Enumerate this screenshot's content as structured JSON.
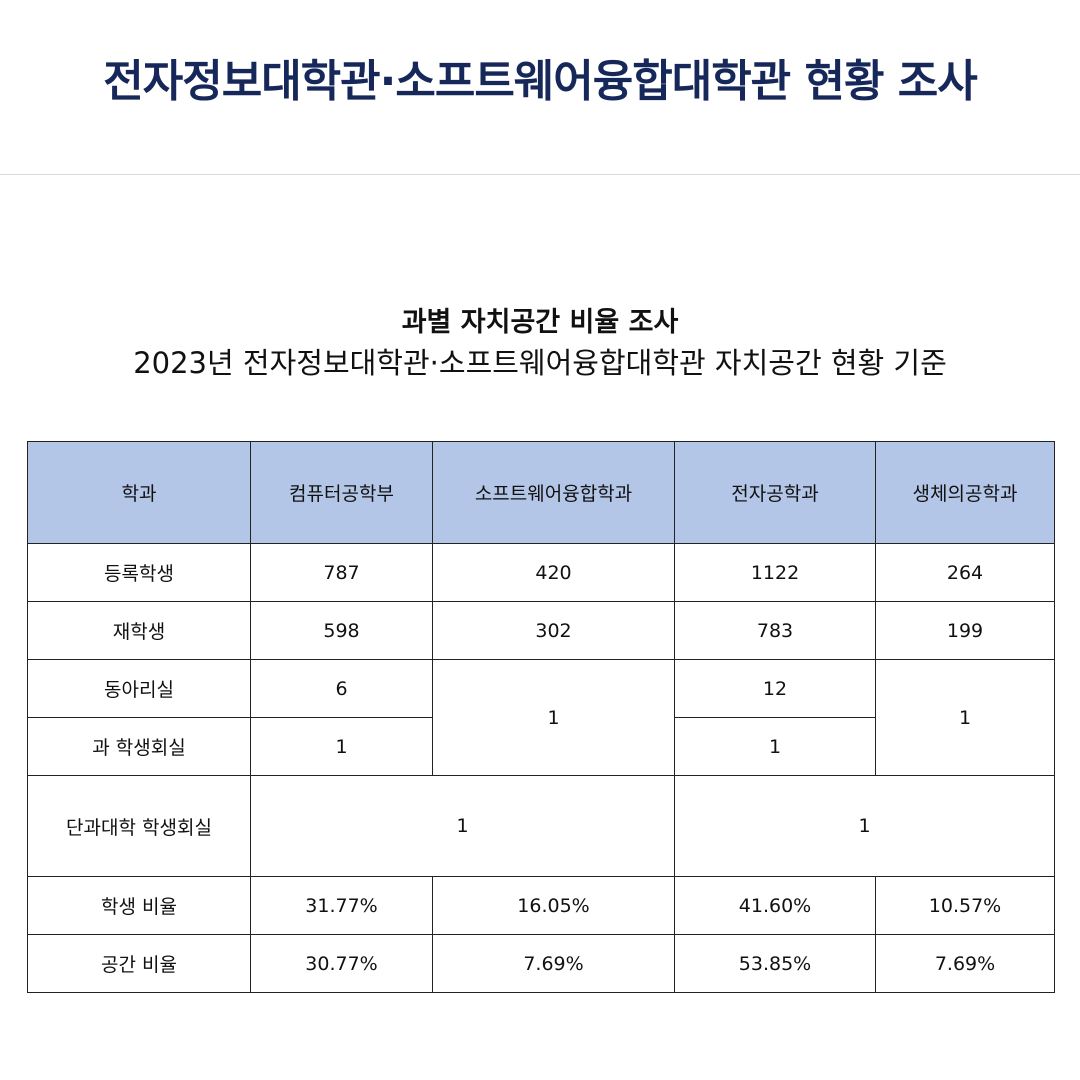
{
  "header": {
    "title": "전자정보대학관·소프트웨어융합대학관 현황 조사"
  },
  "section": {
    "title": "과별 자치공간 비율 조사",
    "caption": "2023년 전자정보대학관·소프트웨어융합대학관 자치공간 현황 기준"
  },
  "table": {
    "headers": [
      "학과",
      "컴퓨터공학부",
      "소프트웨어융합학과",
      "전자공학과",
      "생체의공학과"
    ],
    "rows": {
      "enrolled": {
        "label": "등록학생",
        "values": [
          "787",
          "420",
          "1122",
          "264"
        ]
      },
      "current": {
        "label": "재학생",
        "values": [
          "598",
          "302",
          "783",
          "199"
        ]
      },
      "club_rooms": {
        "label": "동아리실",
        "cs": "6",
        "sw_merged": "1",
        "ee": "12",
        "bme_merged": "1"
      },
      "dept_council": {
        "label": "과 학생회실",
        "cs": "1",
        "ee": "1"
      },
      "college_council": {
        "label": "단과대학 학생회실",
        "left_merged": "1",
        "right_merged": "1"
      },
      "student_ratio": {
        "label": "학생 비율",
        "values": [
          "31.77%",
          "16.05%",
          "41.60%",
          "10.57%"
        ]
      },
      "space_ratio": {
        "label": "공간 비율",
        "values": [
          "30.77%",
          "7.69%",
          "53.85%",
          "7.69%"
        ]
      }
    }
  }
}
